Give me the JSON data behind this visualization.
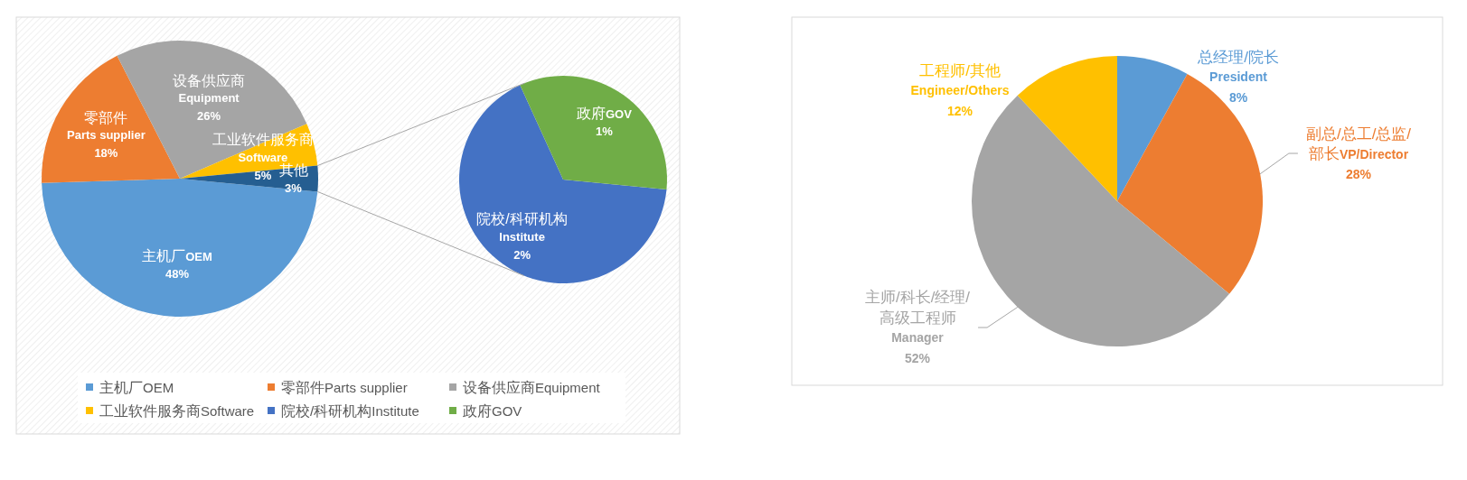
{
  "chart_data": [
    {
      "type": "pie",
      "categories": [
        "主机厂OEM",
        "零部件Parts supplier",
        "设备供应商Equipment",
        "工业软件服务商Software",
        "其他"
      ],
      "values": [
        48,
        18,
        26,
        5,
        3
      ],
      "value_labels": [
        "48%",
        "18%",
        "26%",
        "5%",
        "3%"
      ],
      "colors": [
        "#5b9bd5",
        "#ed7d31",
        "#a5a5a5",
        "#ffc000",
        "#255e91"
      ],
      "legend": "bottom"
    },
    {
      "type": "pie",
      "categories": [
        "院校/科研机构Institute",
        "政府GOV"
      ],
      "values": [
        2,
        1
      ],
      "value_labels": [
        "2%",
        "1%"
      ],
      "colors": [
        "#4472c4",
        "#70ad47"
      ],
      "legend": "bottom"
    },
    {
      "type": "pie",
      "categories": [
        "总经理/院长President",
        "副总/总工/总监/部长VP/Director",
        "主师/科长/经理/高级工程师Manager",
        "工程师/其他Engineer/Others"
      ],
      "values": [
        8,
        28,
        52,
        12
      ],
      "value_labels": [
        "8%",
        "28%",
        "52%",
        "12%"
      ],
      "colors": [
        "#5b9bd5",
        "#ed7d31",
        "#a5a5a5",
        "#ffc000"
      ]
    }
  ]
}
